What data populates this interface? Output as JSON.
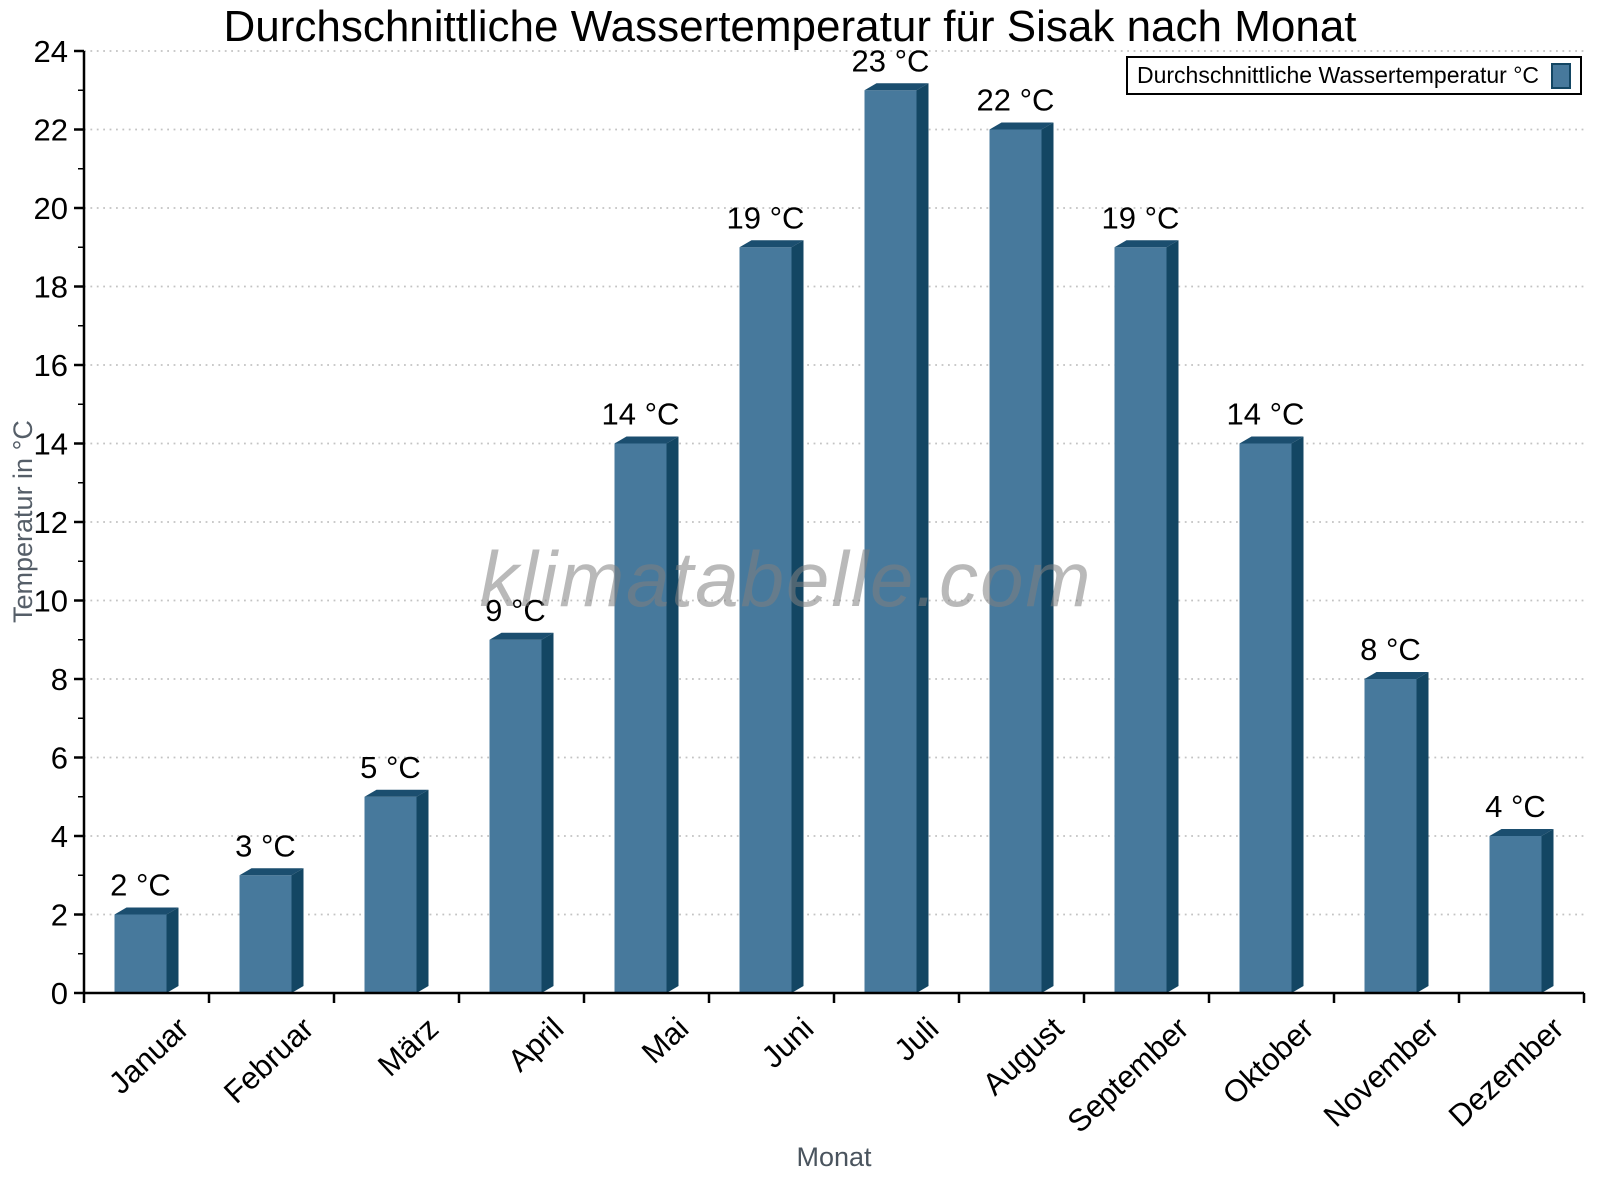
{
  "title": "Durchschnittliche Wassertemperatur für Sisak nach Monat",
  "legend": {
    "label": "Durchschnittliche Wassertemperatur °C",
    "position": "top-right"
  },
  "watermark": "klimatabelle.com",
  "chart_data": {
    "type": "bar",
    "title": "Durchschnittliche Wassertemperatur für Sisak nach Monat",
    "categories": [
      "Januar",
      "Februar",
      "März",
      "April",
      "Mai",
      "Juni",
      "Juli",
      "August",
      "September",
      "Oktober",
      "November",
      "Dezember"
    ],
    "values": [
      2,
      3,
      5,
      9,
      14,
      19,
      23,
      22,
      19,
      14,
      8,
      4
    ],
    "value_labels": [
      "2 °C",
      "3 °C",
      "5 °C",
      "9 °C",
      "14 °C",
      "19 °C",
      "23 °C",
      "22 °C",
      "19 °C",
      "14 °C",
      "8 °C",
      "4 °C"
    ],
    "unit": "°C",
    "xlabel": "Monat",
    "ylabel": "Temperatur in °C",
    "ylim": [
      0,
      24
    ],
    "ytick_step": 2,
    "yminor_step": 1,
    "grid": "horizontal-dotted",
    "legend_position": "top-right",
    "colors": {
      "bar_face": "#47799C",
      "bar_top": "#1B4E6F",
      "bar_right": "#134663",
      "grid": "#C3C3C3",
      "axis": "#000000",
      "tick_text": "#000000",
      "value_text": "#000000",
      "axis_label_text": "#555E68",
      "watermark_text": "#808080"
    }
  }
}
